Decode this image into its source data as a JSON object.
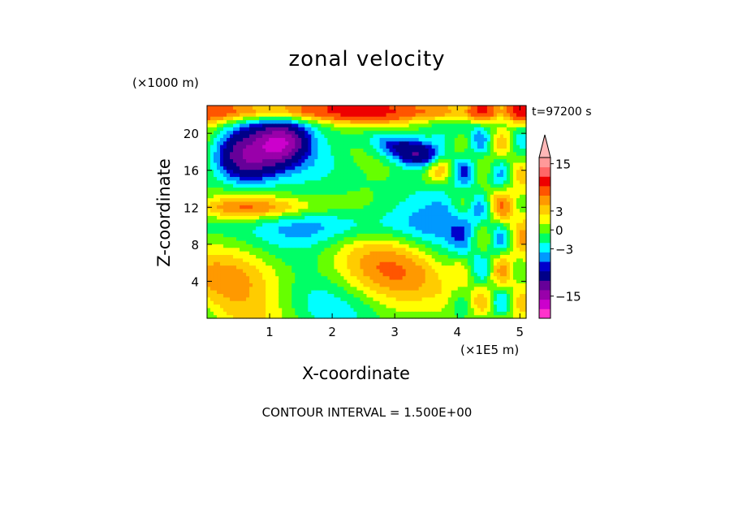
{
  "chart_data": {
    "type": "heatmap",
    "title": "zonal velocity",
    "xlabel": "X-coordinate",
    "ylabel": "Z-coordinate",
    "x_unit": "(×1E5 m)",
    "y_unit": "(×1000 m)",
    "time_label": "t=97200 s",
    "footer": "CONTOUR INTERVAL = 1.500E+00",
    "xlim": [
      0,
      5.1
    ],
    "ylim": [
      0,
      23
    ],
    "x_ticks": [
      "1",
      "2",
      "3",
      "4",
      "5"
    ],
    "y_ticks": [
      "4",
      "8",
      "12",
      "16",
      "20"
    ],
    "colorbar": {
      "tick_labels": [
        "15",
        "3",
        "0",
        "-3",
        "-15"
      ],
      "levels": [
        -18,
        -15,
        -12,
        -9,
        -6,
        -4.5,
        -3,
        -1.5,
        0,
        1.5,
        3,
        4.5,
        6,
        9,
        12,
        15,
        18
      ],
      "colors": [
        "#ff33cc",
        "#cc00cc",
        "#9900aa",
        "#660099",
        "#000088",
        "#0000cc",
        "#0099ff",
        "#00ffff",
        "#00ff66",
        "#66ff00",
        "#ffff00",
        "#ffcc00",
        "#ff9900",
        "#ff5500",
        "#ee0000",
        "#ff6666",
        "#ff9999",
        "#ffb8b8"
      ]
    },
    "grid": false,
    "legend": "colorbar-right"
  }
}
